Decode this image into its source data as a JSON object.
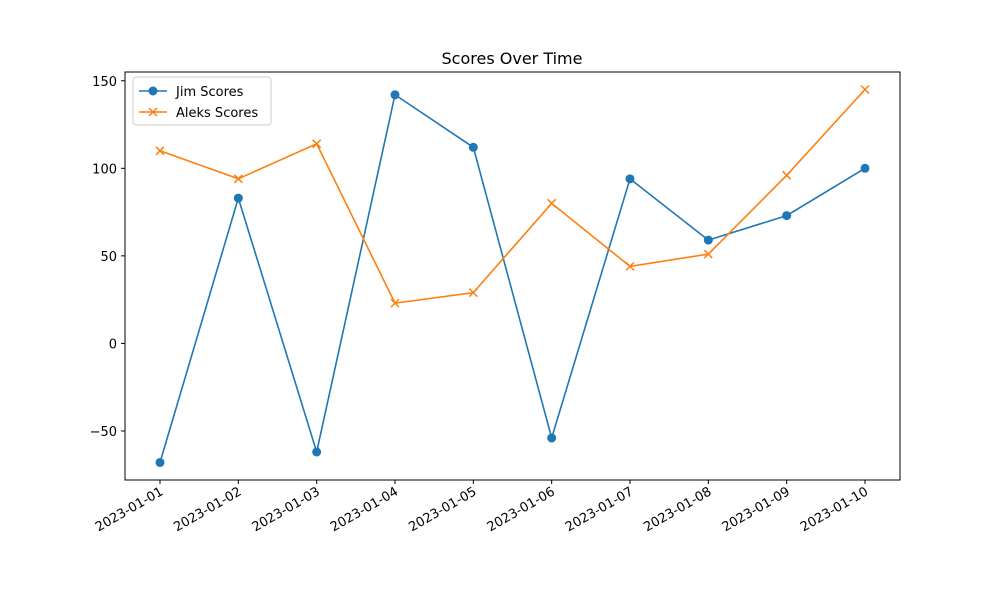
{
  "chart_data": {
    "type": "line",
    "title": "Scores Over Time",
    "xlabel": "",
    "ylabel": "",
    "x": [
      "2023-01-01",
      "2023-01-02",
      "2023-01-03",
      "2023-01-04",
      "2023-01-05",
      "2023-01-06",
      "2023-01-07",
      "2023-01-08",
      "2023-01-09",
      "2023-01-10"
    ],
    "y_ticks": [
      -50,
      0,
      50,
      100,
      150
    ],
    "ylim": [
      -78,
      155
    ],
    "grid": false,
    "legend_position": "top-left",
    "series": [
      {
        "name": "Jim Scores",
        "color": "#1f77b4",
        "marker": "circle",
        "values": [
          -68,
          83,
          -62,
          142,
          112,
          -54,
          94,
          59,
          73,
          100
        ]
      },
      {
        "name": "Aleks Scores",
        "color": "#ff7f0e",
        "marker": "x",
        "values": [
          110,
          94,
          114,
          23,
          29,
          80,
          44,
          51,
          96,
          145
        ]
      }
    ]
  }
}
